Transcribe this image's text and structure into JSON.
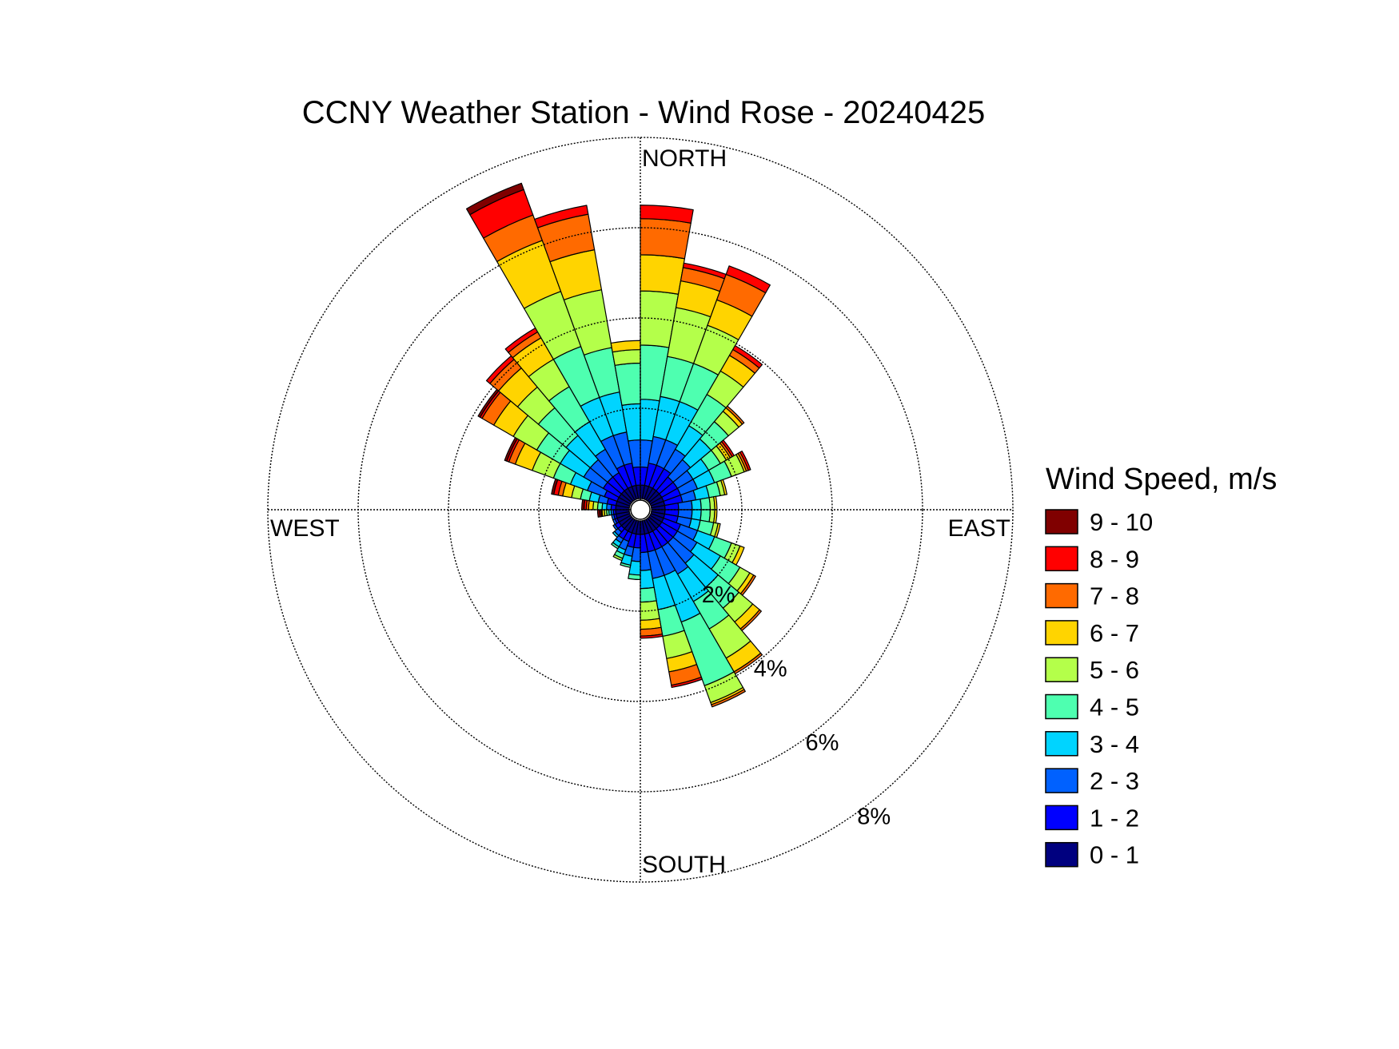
{
  "chart_data": {
    "type": "wind-rose",
    "title": "CCNY Weather Station - Wind Rose - 20240425",
    "direction_labels": {
      "north": "NORTH",
      "east": "EAST",
      "south": "SOUTH",
      "west": "WEST"
    },
    "ring_values": [
      2,
      4,
      6,
      8
    ],
    "ring_labels": [
      "2%",
      "4%",
      "6%",
      "8%"
    ],
    "legend_title": "Wind Speed, m/s",
    "speed_bins": [
      {
        "label": "0 - 1",
        "color": "#00007f"
      },
      {
        "label": "1 - 2",
        "color": "#0000ff"
      },
      {
        "label": "2 - 3",
        "color": "#0061ff"
      },
      {
        "label": "3 - 4",
        "color": "#00d4ff"
      },
      {
        "label": "4 - 5",
        "color": "#4effb0"
      },
      {
        "label": "5 - 6",
        "color": "#b4ff4a"
      },
      {
        "label": "6 - 7",
        "color": "#ffd400"
      },
      {
        "label": "7 - 8",
        "color": "#ff6a00"
      },
      {
        "label": "8 - 9",
        "color": "#ff0000"
      },
      {
        "label": "9 - 10",
        "color": "#800000"
      }
    ],
    "sector_width_deg": 10,
    "sectors": [
      {
        "direction": 5,
        "cumulative_percent": [
          0.3,
          0.7,
          1.3,
          2.2,
          3.4,
          4.6,
          5.4,
          6.2,
          6.5,
          6.5
        ]
      },
      {
        "direction": 15,
        "cumulative_percent": [
          0.3,
          0.8,
          1.4,
          2.3,
          3.2,
          4.3,
          4.9,
          5.2,
          5.3,
          5.3
        ]
      },
      {
        "direction": 25,
        "cumulative_percent": [
          0.3,
          0.8,
          1.4,
          2.3,
          3.2,
          4.1,
          4.7,
          5.3,
          5.5,
          5.5
        ]
      },
      {
        "direction": 35,
        "cumulative_percent": [
          0.3,
          0.8,
          1.3,
          1.9,
          2.7,
          3.3,
          3.7,
          3.85,
          3.95,
          3.95
        ]
      },
      {
        "direction": 45,
        "cumulative_percent": [
          0.3,
          0.7,
          1.2,
          1.8,
          2.3,
          2.6,
          2.7,
          2.75,
          2.75,
          2.75
        ]
      },
      {
        "direction": 55,
        "cumulative_percent": [
          0.3,
          0.7,
          1.1,
          1.5,
          1.8,
          1.95,
          2.05,
          2.1,
          2.15,
          2.15
        ]
      },
      {
        "direction": 65,
        "cumulative_percent": [
          0.3,
          0.7,
          1.1,
          1.5,
          1.9,
          2.2,
          2.25,
          2.3,
          2.35,
          2.35
        ]
      },
      {
        "direction": 75,
        "cumulative_percent": [
          0.3,
          0.7,
          1.0,
          1.3,
          1.55,
          1.65,
          1.7,
          1.7,
          1.7,
          1.7
        ]
      },
      {
        "direction": 85,
        "cumulative_percent": [
          0.3,
          0.6,
          0.9,
          1.1,
          1.3,
          1.4,
          1.45,
          1.45,
          1.45,
          1.45
        ]
      },
      {
        "direction": 95,
        "cumulative_percent": [
          0.3,
          0.6,
          0.9,
          1.1,
          1.3,
          1.4,
          1.45,
          1.45,
          1.45,
          1.45
        ]
      },
      {
        "direction": 105,
        "cumulative_percent": [
          0.3,
          0.6,
          0.9,
          1.1,
          1.4,
          1.5,
          1.55,
          1.55,
          1.55,
          1.55
        ]
      },
      {
        "direction": 115,
        "cumulative_percent": [
          0.3,
          0.7,
          1.1,
          1.5,
          1.9,
          2.1,
          2.2,
          2.2,
          2.2,
          2.2
        ]
      },
      {
        "direction": 125,
        "cumulative_percent": [
          0.3,
          0.7,
          1.2,
          1.8,
          2.3,
          2.55,
          2.65,
          2.7,
          2.7,
          2.7
        ]
      },
      {
        "direction": 135,
        "cumulative_percent": [
          0.3,
          0.7,
          1.3,
          2.0,
          2.6,
          3.0,
          3.2,
          3.25,
          3.25,
          3.25
        ]
      },
      {
        "direction": 145,
        "cumulative_percent": [
          0.3,
          0.7,
          1.4,
          2.1,
          2.8,
          3.55,
          3.9,
          3.95,
          3.95,
          3.95
        ]
      },
      {
        "direction": 155,
        "cumulative_percent": [
          0.3,
          0.7,
          1.3,
          2.4,
          3.9,
          4.3,
          4.35,
          4.4,
          4.4,
          4.4
        ]
      },
      {
        "direction": 165,
        "cumulative_percent": [
          0.3,
          0.7,
          1.3,
          2.0,
          2.6,
          3.1,
          3.4,
          3.7,
          3.75,
          3.75
        ]
      },
      {
        "direction": 175,
        "cumulative_percent": [
          0.3,
          0.7,
          1.1,
          1.5,
          1.8,
          2.2,
          2.4,
          2.55,
          2.6,
          2.6
        ]
      },
      {
        "direction": 185,
        "cumulative_percent": [
          0.3,
          0.6,
          0.9,
          1.2,
          1.3,
          1.3,
          1.3,
          1.3,
          1.3,
          1.3
        ]
      },
      {
        "direction": 195,
        "cumulative_percent": [
          0.3,
          0.6,
          0.8,
          1.0,
          1.05,
          1.05,
          1.05,
          1.05,
          1.05,
          1.05
        ]
      },
      {
        "direction": 205,
        "cumulative_percent": [
          0.3,
          0.5,
          0.7,
          0.8,
          0.9,
          0.95,
          0.95,
          0.95,
          0.95,
          0.95
        ]
      },
      {
        "direction": 215,
        "cumulative_percent": [
          0.3,
          0.5,
          0.6,
          0.7,
          0.75,
          0.75,
          0.75,
          0.75,
          0.75,
          0.75
        ]
      },
      {
        "direction": 225,
        "cumulative_percent": [
          0.3,
          0.4,
          0.5,
          0.55,
          0.55,
          0.55,
          0.55,
          0.55,
          0.55,
          0.55
        ]
      },
      {
        "direction": 235,
        "cumulative_percent": [
          0.3,
          0.4,
          0.45,
          0.45,
          0.45,
          0.45,
          0.45,
          0.45,
          0.45,
          0.45
        ]
      },
      {
        "direction": 245,
        "cumulative_percent": [
          0.3,
          0.35,
          0.4,
          0.4,
          0.4,
          0.4,
          0.4,
          0.4,
          0.4,
          0.4
        ]
      },
      {
        "direction": 255,
        "cumulative_percent": [
          0.3,
          0.35,
          0.4,
          0.4,
          0.4,
          0.4,
          0.4,
          0.4,
          0.4,
          0.4
        ]
      },
      {
        "direction": 265,
        "cumulative_percent": [
          0.3,
          0.35,
          0.4,
          0.45,
          0.5,
          0.55,
          0.6,
          0.62,
          0.65,
          0.7
        ]
      },
      {
        "direction": 275,
        "cumulative_percent": [
          0.3,
          0.4,
          0.5,
          0.6,
          0.7,
          0.8,
          0.9,
          0.95,
          1.0,
          1.05
        ]
      },
      {
        "direction": 285,
        "cumulative_percent": [
          0.3,
          0.5,
          0.7,
          0.9,
          1.1,
          1.3,
          1.5,
          1.6,
          1.7,
          1.75
        ]
      },
      {
        "direction": 295,
        "cumulative_percent": [
          0.3,
          0.6,
          1.0,
          1.4,
          1.8,
          2.3,
          2.7,
          2.85,
          2.9,
          2.95
        ]
      },
      {
        "direction": 305,
        "cumulative_percent": [
          0.3,
          0.7,
          1.2,
          1.8,
          2.4,
          3.0,
          3.5,
          3.8,
          3.85,
          3.9
        ]
      },
      {
        "direction": 315,
        "cumulative_percent": [
          0.3,
          0.7,
          1.2,
          1.9,
          2.7,
          3.3,
          3.85,
          4.1,
          4.2,
          4.2
        ]
      },
      {
        "direction": 325,
        "cumulative_percent": [
          0.3,
          0.7,
          1.3,
          2.0,
          2.9,
          3.6,
          4.15,
          4.3,
          4.4,
          4.4
        ]
      },
      {
        "direction": 335,
        "cumulative_percent": [
          0.3,
          0.8,
          1.5,
          2.4,
          3.6,
          4.9,
          6.1,
          6.7,
          7.3,
          7.45
        ]
      },
      {
        "direction": 345,
        "cumulative_percent": [
          0.3,
          0.8,
          1.5,
          2.4,
          3.4,
          4.7,
          5.6,
          6.4,
          6.6,
          6.6
        ]
      },
      {
        "direction": 355,
        "cumulative_percent": [
          0.3,
          0.7,
          1.3,
          2.1,
          3.0,
          3.3,
          3.5,
          3.5,
          3.5,
          3.5
        ]
      }
    ]
  }
}
